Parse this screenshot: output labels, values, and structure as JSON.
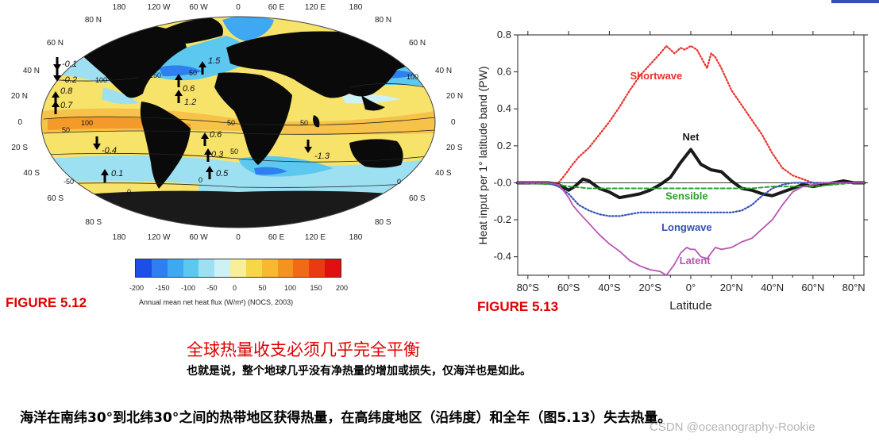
{
  "colors": {
    "accent_red": "#e00000",
    "ocean_yellow": "#f7e36a",
    "land": "#0a0a0a",
    "ice": "#707070",
    "shortwave": "#e8322d",
    "net": "#1a1a1a",
    "sensible": "#2ea02e",
    "longwave": "#3450b4",
    "latent": "#b855b2"
  },
  "fig512": {
    "label": "FIGURE 5.12",
    "top_lon": [
      "180",
      "120 W",
      "60 W",
      "0",
      "60 E",
      "120 E",
      "180"
    ],
    "bottom_lon": [
      "180",
      "120 W",
      "60 W",
      "0",
      "60 E",
      "120 E",
      "180"
    ],
    "left_lat": [
      "80 N",
      "60 N",
      "40 N",
      "20 N",
      "0",
      "20 S",
      "40 S",
      "60 S",
      "80 S"
    ],
    "right_lat": [
      "80 N",
      "60 N",
      "40 N",
      "20 N",
      "0",
      "20 S",
      "40 S",
      "60 S",
      "80 S"
    ],
    "arrow_values": [
      "-0.1",
      "-0.2",
      "0.8",
      "0.7",
      "-0.4",
      "0.1",
      "0.6",
      "1.2",
      "1.5",
      "0.6",
      "0.3",
      "0.5",
      "-1.3"
    ],
    "contour_labels": [
      "100",
      "50",
      "100",
      "150",
      "50",
      "50",
      "50",
      "50",
      "100",
      "0",
      "0",
      "0",
      "-50",
      "50"
    ],
    "colorbar_ticks": [
      "-200",
      "-150",
      "-100",
      "-50",
      "0",
      "50",
      "100",
      "150",
      "200"
    ],
    "colorbar_colors": [
      "#1c4fe6",
      "#2f7ff0",
      "#3fa8f2",
      "#5cc8f0",
      "#9de0f2",
      "#cdf1f4",
      "#f9ee9a",
      "#f8d64a",
      "#f8b830",
      "#f59320",
      "#f06a18",
      "#e93a13",
      "#e01010"
    ],
    "colorbar_caption": "Annual mean net heat flux (W/m²) (NOCS, 2003)"
  },
  "fig513": {
    "label": "FIGURE 5.13",
    "chart_data": {
      "type": "line",
      "xlabel": "Latitude",
      "ylabel": "Heat input per 1° latitude band (PW)",
      "xlim": [
        -85,
        85
      ],
      "ylim": [
        -0.5,
        0.8
      ],
      "x_ticks": [
        -80,
        -60,
        -40,
        -20,
        0,
        20,
        40,
        60,
        80
      ],
      "x_tick_labels": [
        "80°S",
        "60°S",
        "40°S",
        "20°S",
        "0°",
        "20°N",
        "40°N",
        "60°N",
        "80°N"
      ],
      "y_ticks": [
        0.8,
        0.6,
        0.4,
        0.2,
        0.0,
        -0.2,
        -0.4
      ],
      "y_tick_labels": [
        "0.8",
        "0.6",
        "0.4",
        "0.2",
        "-0.0",
        "-0.2",
        "-0.4"
      ],
      "series": [
        {
          "name": "Shortwave",
          "color": "#e8322d",
          "style": "dotted",
          "width": 2.2,
          "label_at": [
            -17,
            0.56
          ],
          "x": [
            -85,
            -65,
            -62,
            -58,
            -55,
            -50,
            -45,
            -40,
            -35,
            -30,
            -25,
            -20,
            -15,
            -12,
            -10,
            -8,
            -5,
            -3,
            0,
            3,
            5,
            8,
            10,
            12,
            15,
            20,
            25,
            30,
            35,
            40,
            45,
            50,
            55,
            60,
            65,
            70,
            75,
            80,
            85
          ],
          "y": [
            0,
            0,
            0.04,
            0.1,
            0.14,
            0.19,
            0.26,
            0.33,
            0.41,
            0.5,
            0.58,
            0.64,
            0.7,
            0.74,
            0.72,
            0.7,
            0.73,
            0.72,
            0.74,
            0.72,
            0.68,
            0.62,
            0.7,
            0.68,
            0.62,
            0.5,
            0.42,
            0.34,
            0.26,
            0.16,
            0.08,
            0.04,
            0.02,
            0.0,
            0.0,
            0.0,
            0.0,
            0.0,
            0.0
          ]
        },
        {
          "name": "Net",
          "color": "#1a1a1a",
          "style": "solid",
          "width": 4,
          "label_at": [
            0,
            0.23
          ],
          "x": [
            -85,
            -70,
            -65,
            -60,
            -57,
            -53,
            -50,
            -45,
            -40,
            -35,
            -30,
            -25,
            -20,
            -15,
            -10,
            -5,
            0,
            5,
            10,
            15,
            20,
            25,
            30,
            35,
            40,
            45,
            50,
            55,
            60,
            65,
            70,
            75,
            80,
            85
          ],
          "y": [
            0,
            0,
            -0.01,
            -0.04,
            -0.02,
            0.02,
            0.01,
            -0.03,
            -0.05,
            -0.08,
            -0.07,
            -0.06,
            -0.04,
            -0.01,
            0.03,
            0.11,
            0.18,
            0.1,
            0.07,
            0.06,
            0.01,
            -0.03,
            -0.04,
            -0.06,
            -0.07,
            -0.05,
            -0.03,
            -0.01,
            -0.02,
            -0.01,
            0,
            0.01,
            0,
            0
          ]
        },
        {
          "name": "Sensible",
          "color": "#2ea02e",
          "style": "dashed",
          "width": 2,
          "label_at": [
            -2,
            -0.09
          ],
          "x": [
            -85,
            -65,
            -60,
            -50,
            -40,
            -30,
            -20,
            -10,
            0,
            10,
            20,
            30,
            40,
            50,
            60,
            70,
            80,
            85
          ],
          "y": [
            0,
            -0.01,
            -0.02,
            -0.03,
            -0.03,
            -0.03,
            -0.03,
            -0.03,
            -0.03,
            -0.03,
            -0.03,
            -0.03,
            -0.02,
            -0.02,
            -0.02,
            -0.01,
            0,
            0
          ]
        },
        {
          "name": "Longwave",
          "color": "#3450b4",
          "style": "dotted",
          "width": 2.2,
          "label_at": [
            -2,
            -0.26
          ],
          "x": [
            -85,
            -70,
            -65,
            -60,
            -55,
            -50,
            -45,
            -40,
            -35,
            -30,
            -25,
            -20,
            -15,
            -10,
            -5,
            0,
            5,
            10,
            15,
            20,
            25,
            30,
            35,
            40,
            45,
            50,
            55,
            60,
            65,
            70,
            75,
            80,
            85
          ],
          "y": [
            0,
            0,
            -0.02,
            -0.06,
            -0.12,
            -0.15,
            -0.17,
            -0.18,
            -0.18,
            -0.17,
            -0.16,
            -0.16,
            -0.16,
            -0.16,
            -0.16,
            -0.16,
            -0.16,
            -0.16,
            -0.16,
            -0.16,
            -0.15,
            -0.12,
            -0.07,
            -0.03,
            -0.01,
            0,
            0,
            0,
            0,
            0,
            0,
            0,
            0
          ]
        },
        {
          "name": "Latent",
          "color": "#b855b2",
          "style": "solid",
          "width": 1.8,
          "label_at": [
            2,
            -0.44
          ],
          "x": [
            -85,
            -70,
            -65,
            -62,
            -60,
            -58,
            -55,
            -50,
            -45,
            -40,
            -35,
            -30,
            -25,
            -20,
            -15,
            -12,
            -10,
            -8,
            -5,
            -2,
            0,
            2,
            5,
            8,
            10,
            12,
            15,
            20,
            25,
            30,
            35,
            40,
            45,
            50,
            55,
            60,
            65,
            70,
            75,
            80,
            85
          ],
          "y": [
            0,
            0,
            -0.01,
            -0.05,
            -0.08,
            -0.12,
            -0.16,
            -0.22,
            -0.28,
            -0.33,
            -0.37,
            -0.42,
            -0.45,
            -0.47,
            -0.48,
            -0.5,
            -0.47,
            -0.44,
            -0.38,
            -0.35,
            -0.36,
            -0.36,
            -0.4,
            -0.41,
            -0.38,
            -0.35,
            -0.36,
            -0.35,
            -0.32,
            -0.3,
            -0.25,
            -0.2,
            -0.12,
            -0.05,
            -0.02,
            -0.01,
            0,
            0,
            0,
            0,
            0
          ]
        }
      ]
    }
  },
  "headline": "全球热量收支必须几乎完全平衡",
  "subline": "也就是说，整个地球几乎没有净热量的增加或损失，仅海洋也是如此。",
  "body_text": "海洋在南纬30°到北纬30°之间的热带地区获得热量，在高纬度地区（沿纬度）和全年（图5.13）失去热量。",
  "watermark": "CSDN @oceanography-Rookie"
}
